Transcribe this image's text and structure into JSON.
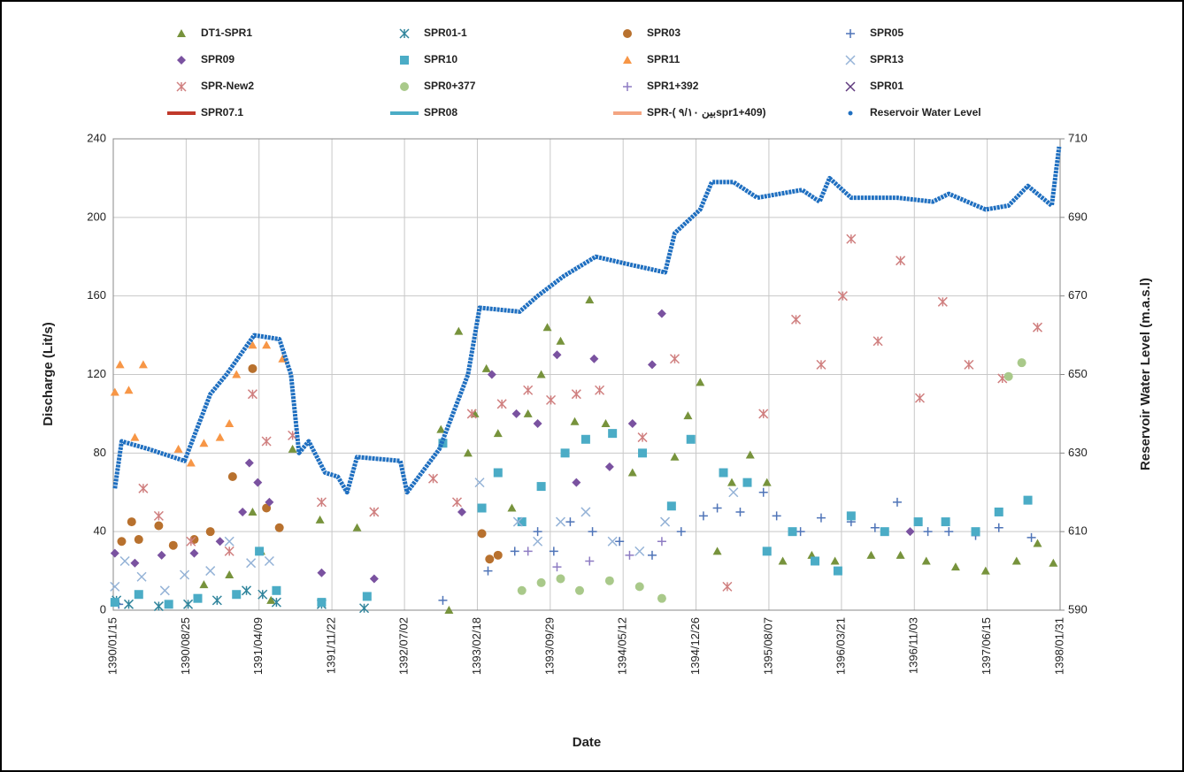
{
  "chart_data": {
    "type": "scatter",
    "x_label": "Date",
    "y_label": "Discharge (Lit/s)",
    "y2_label": "Reservoir  Water Level (m.a.s.l)",
    "xlim": [
      "1390/01/15",
      "1398/01/31"
    ],
    "xticks": [
      "1390/01/15",
      "1390/08/25",
      "1391/04/09",
      "1391/11/22",
      "1392/07/02",
      "1393/02/18",
      "1393/09/29",
      "1394/05/12",
      "1394/12/26",
      "1395/08/07",
      "1396/03/21",
      "1396/11/03",
      "1397/06/15",
      "1398/01/31"
    ],
    "ylim": [
      0,
      240
    ],
    "yticks": [
      0,
      40,
      80,
      120,
      160,
      200,
      240
    ],
    "y2lim": [
      590,
      710
    ],
    "y2ticks": [
      590,
      610,
      630,
      650,
      670,
      690,
      710
    ],
    "grid": true,
    "series": [
      {
        "name": "DT1-SPR1",
        "color": "#77933c",
        "marker": "triangle",
        "x": [
          "1390/10/20",
          "1391/01/10",
          "1391/03/20",
          "1391/04/15",
          "1391/05/15",
          "1391/07/20",
          "1391/10/15",
          "1392/02/10",
          "1392/10/25",
          "1392/11/20",
          "1392/12/20",
          "1393/01/20",
          "1393/02/10",
          "1393/03/15",
          "1393/04/20",
          "1393/06/01",
          "1393/07/20",
          "1393/09/01",
          "1393/09/20",
          "1393/11/01",
          "1393/12/15",
          "1394/02/01",
          "1394/03/20",
          "1394/06/10",
          "1394/10/20",
          "1394/12/01",
          "1395/01/10",
          "1395/03/01",
          "1395/04/15",
          "1395/06/10",
          "1395/08/01",
          "1395/09/20",
          "1395/12/20",
          "1396/03/01",
          "1396/06/20",
          "1396/09/20",
          "1396/12/10",
          "1397/03/10",
          "1397/06/10",
          "1397/09/15",
          "1397/11/20",
          "1398/01/10"
        ],
        "values": [
          13,
          18,
          50,
          30,
          5,
          82,
          46,
          42,
          92,
          0,
          142,
          80,
          100,
          123,
          90,
          52,
          100,
          120,
          144,
          137,
          96,
          158,
          95,
          70,
          78,
          99,
          116,
          30,
          65,
          79,
          65,
          25,
          28,
          25,
          28,
          28,
          25,
          22,
          20,
          25,
          34,
          24
        ]
      },
      {
        "name": "SPR01-1",
        "color": "#31859c",
        "marker": "asterisk",
        "x": [
          "1390/01/25",
          "1390/03/01",
          "1390/06/01",
          "1390/09/01",
          "1390/12/01",
          "1391/03/01",
          "1391/04/20",
          "1391/06/01",
          "1391/10/20",
          "1392/03/01"
        ],
        "values": [
          5,
          3,
          2,
          3,
          5,
          10,
          8,
          4,
          3,
          1
        ]
      },
      {
        "name": "SPR03",
        "color": "#b8712e",
        "marker": "circle",
        "x": [
          "1390/02/10",
          "1390/03/10",
          "1390/04/01",
          "1390/06/01",
          "1390/07/15",
          "1390/09/20",
          "1390/11/10",
          "1391/01/20",
          "1391/03/20",
          "1391/05/01",
          "1391/06/10",
          "1393/03/01",
          "1393/03/25",
          "1393/04/20"
        ],
        "values": [
          35,
          45,
          36,
          43,
          33,
          36,
          40,
          68,
          123,
          52,
          42,
          39,
          26,
          28
        ]
      },
      {
        "name": "SPR05",
        "color": "#4f74b8",
        "marker": "plus",
        "x": [
          "1390/02/01",
          "1392/11/01",
          "1393/03/20",
          "1393/06/10",
          "1393/08/20",
          "1393/10/10",
          "1393/12/01",
          "1394/02/10",
          "1394/05/01",
          "1394/08/10",
          "1394/11/10",
          "1395/01/20",
          "1395/03/01",
          "1395/05/10",
          "1395/07/20",
          "1395/09/01",
          "1395/11/15",
          "1396/01/20",
          "1396/04/20",
          "1396/07/01",
          "1396/09/10",
          "1396/12/15",
          "1397/02/20",
          "1397/05/10",
          "1397/07/20",
          "1397/11/01"
        ],
        "values": [
          3,
          5,
          20,
          30,
          40,
          30,
          45,
          40,
          35,
          28,
          40,
          48,
          52,
          50,
          60,
          48,
          40,
          47,
          45,
          42,
          55,
          40,
          40,
          38,
          42,
          37
        ]
      },
      {
        "name": "SPR09",
        "color": "#7a52a0",
        "marker": "diamond",
        "x": [
          "1390/01/20",
          "1390/03/20",
          "1390/06/10",
          "1390/09/20",
          "1390/12/10",
          "1391/02/20",
          "1391/03/10",
          "1391/04/05",
          "1391/05/10",
          "1391/10/20",
          "1392/04/01",
          "1393/01/01",
          "1393/04/01",
          "1393/06/15",
          "1393/08/20",
          "1393/10/20",
          "1393/12/20",
          "1394/02/15",
          "1394/04/01",
          "1394/06/10",
          "1394/08/10",
          "1394/09/10",
          "1396/10/20"
        ],
        "values": [
          29,
          24,
          28,
          29,
          35,
          50,
          75,
          65,
          55,
          19,
          16,
          50,
          120,
          100,
          95,
          130,
          65,
          128,
          73,
          95,
          125,
          151,
          40
        ]
      },
      {
        "name": "SPR10",
        "color": "#4bacc6",
        "marker": "square",
        "x": [
          "1390/01/20",
          "1390/04/01",
          "1390/07/01",
          "1390/10/01",
          "1391/02/01",
          "1391/04/10",
          "1391/06/01",
          "1391/10/20",
          "1392/03/10",
          "1392/11/01",
          "1393/03/01",
          "1393/04/20",
          "1393/07/01",
          "1393/09/01",
          "1393/11/15",
          "1394/01/20",
          "1394/04/10",
          "1394/07/10",
          "1394/10/10",
          "1394/12/10",
          "1395/03/20",
          "1395/06/01",
          "1395/08/01",
          "1395/10/20",
          "1396/01/01",
          "1396/03/10",
          "1396/04/20",
          "1396/08/01",
          "1396/11/15",
          "1397/02/10",
          "1397/05/10",
          "1397/07/20",
          "1397/10/20"
        ],
        "values": [
          4,
          8,
          3,
          6,
          8,
          30,
          10,
          4,
          7,
          85,
          52,
          70,
          45,
          63,
          80,
          87,
          90,
          80,
          53,
          87,
          70,
          65,
          30,
          40,
          25,
          20,
          48,
          40,
          45,
          45,
          40,
          50,
          56
        ]
      },
      {
        "name": "SPR11",
        "color": "#f79646",
        "marker": "triangle",
        "x": [
          "1390/01/20",
          "1390/02/05",
          "1390/03/01",
          "1390/03/20",
          "1390/04/15",
          "1390/08/01",
          "1390/09/10",
          "1390/10/20",
          "1390/12/10",
          "1391/01/10",
          "1391/02/01",
          "1391/03/20",
          "1391/05/01",
          "1391/06/20"
        ],
        "values": [
          111,
          125,
          112,
          88,
          125,
          82,
          75,
          85,
          88,
          95,
          120,
          135,
          135,
          128
        ]
      },
      {
        "name": "SPR13",
        "color": "#95b3d7",
        "marker": "x",
        "x": [
          "1390/01/20",
          "1390/02/20",
          "1390/04/10",
          "1390/06/20",
          "1390/08/20",
          "1390/11/10",
          "1391/01/10",
          "1391/03/15",
          "1391/05/10",
          "1393/02/25",
          "1393/06/20",
          "1393/08/20",
          "1393/11/01",
          "1394/01/20",
          "1394/04/10",
          "1394/07/01",
          "1394/09/20",
          "1395/04/20"
        ],
        "values": [
          12,
          25,
          17,
          10,
          18,
          20,
          35,
          24,
          25,
          65,
          45,
          35,
          45,
          50,
          35,
          30,
          45,
          60
        ]
      },
      {
        "name": "SPR-New2",
        "color": "#d08080",
        "marker": "star",
        "x": [
          "1390/04/15",
          "1390/06/01",
          "1390/09/10",
          "1391/01/10",
          "1391/03/20",
          "1391/05/01",
          "1391/07/20",
          "1391/10/20",
          "1392/04/01",
          "1392/10/01",
          "1392/12/15",
          "1393/02/01",
          "1393/05/01",
          "1393/07/20",
          "1393/10/01",
          "1393/12/20",
          "1394/03/01",
          "1394/07/10",
          "1394/10/20",
          "1395/04/01",
          "1395/07/20",
          "1395/11/01",
          "1396/01/20",
          "1396/03/25",
          "1396/04/20",
          "1396/07/10",
          "1396/09/20",
          "1396/11/20",
          "1397/02/01",
          "1397/04/20",
          "1397/08/01",
          "1397/11/20"
        ],
        "values": [
          62,
          48,
          35,
          30,
          110,
          86,
          89,
          55,
          50,
          67,
          55,
          100,
          105,
          112,
          107,
          110,
          112,
          88,
          128,
          12,
          100,
          148,
          125,
          160,
          189,
          137,
          178,
          108,
          157,
          125,
          118,
          144
        ]
      },
      {
        "name": "SPR0+377",
        "color": "#a9c98a",
        "marker": "circle",
        "x": [
          "1393/07/01",
          "1393/09/01",
          "1393/11/01",
          "1394/01/01",
          "1394/04/01",
          "1394/07/01",
          "1394/09/10",
          "1397/08/20",
          "1397/10/01"
        ],
        "values": [
          10,
          14,
          16,
          10,
          15,
          12,
          6,
          119,
          126
        ]
      },
      {
        "name": "SPR1+392",
        "color": "#8e7cc3",
        "marker": "plus",
        "x": [
          "1393/07/20",
          "1393/10/20",
          "1394/02/01",
          "1394/06/01",
          "1394/09/10"
        ],
        "values": [
          30,
          22,
          25,
          28,
          35
        ]
      },
      {
        "name": "SPR01",
        "color": "#5f3a7e",
        "marker": "x",
        "x": [],
        "values": []
      },
      {
        "name": "SPR07.1",
        "color": "#c0392b",
        "marker": "line",
        "x": [],
        "values": []
      },
      {
        "name": "SPR08",
        "color": "#4bacc6",
        "marker": "line",
        "x": [],
        "values": []
      },
      {
        "name": "SPR-( ۹/۱۰ بینspr1+409)",
        "color": "#f4a582",
        "marker": "line",
        "x": [],
        "values": []
      },
      {
        "name": "Reservoir Water Level",
        "color": "#1f6fc0",
        "marker": "dot",
        "axis": "y2",
        "x": [
          "1390/01/20",
          "1390/02/10",
          "1390/05/01",
          "1390/08/20",
          "1390/11/10",
          "1391/01/01",
          "1391/03/25",
          "1391/06/10",
          "1391/07/15",
          "1391/08/10",
          "1391/09/10",
          "1391/11/01",
          "1391/12/10",
          "1392/01/10",
          "1392/02/10",
          "1392/06/20",
          "1392/07/10",
          "1392/10/20",
          "1393/01/20",
          "1393/02/25",
          "1393/06/25",
          "1393/08/20",
          "1393/11/10",
          "1394/02/20",
          "1394/06/01",
          "1394/09/20",
          "1394/10/20",
          "1395/01/10",
          "1395/02/15",
          "1395/04/20",
          "1395/07/01",
          "1395/11/20",
          "1396/01/15",
          "1396/02/15",
          "1396/04/20",
          "1396/09/10",
          "1397/01/01",
          "1397/02/20",
          "1397/06/10",
          "1397/08/20",
          "1397/10/20",
          "1398/01/05",
          "1398/01/28"
        ],
        "values": [
          621,
          633,
          631,
          628,
          645,
          650,
          660,
          659,
          650,
          630,
          633,
          625,
          624,
          620,
          629,
          628,
          620,
          631,
          650,
          667,
          666,
          670,
          675,
          680,
          678,
          676,
          686,
          692,
          699,
          699,
          695,
          697,
          694,
          700,
          695,
          695,
          694,
          696,
          692,
          693,
          698,
          693,
          708
        ]
      }
    ]
  }
}
